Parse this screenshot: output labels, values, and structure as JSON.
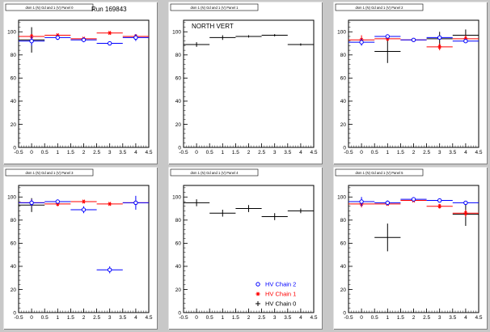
{
  "canvas": {
    "background": "#c8c8c8",
    "pad_color": "#ffffff"
  },
  "legend": {
    "entries": [
      {
        "label": "HV Chain 2",
        "color": "#0000ff",
        "marker": "circle"
      },
      {
        "label": "HV Chain 1",
        "color": "#ff0000",
        "marker": "star"
      },
      {
        "label": "HV Chain 0",
        "color": "#000000",
        "marker": "cross"
      }
    ]
  },
  "chart_data": [
    {
      "type": "scatter",
      "title": "dsm 1 (N) Gd and 1 (V) Panel 0",
      "annotation": "Run 169843",
      "xlim": [
        -0.5,
        4.5
      ],
      "ylim": [
        0,
        110
      ],
      "xticks": [
        "-0.5",
        "0",
        "0.5",
        "1",
        "1.5",
        "2",
        "2.5",
        "3",
        "3.5",
        "4",
        "4.5"
      ],
      "yticks": [
        "0",
        "20",
        "40",
        "60",
        "80",
        "100"
      ],
      "series": [
        {
          "marker": "circle",
          "color": "#0000ff",
          "x": [
            0,
            1,
            2,
            3,
            4
          ],
          "y": [
            92,
            95,
            93,
            90,
            95
          ],
          "yerr": [
            4,
            2,
            2,
            1,
            3
          ]
        },
        {
          "marker": "star",
          "color": "#ff0000",
          "x": [
            0,
            1,
            2,
            3,
            4
          ],
          "y": [
            96,
            97,
            94,
            99,
            96
          ],
          "yerr": [
            2,
            1,
            1,
            1,
            1
          ]
        },
        {
          "marker": "cross",
          "color": "#000000",
          "x": [
            0
          ],
          "y": [
            93
          ],
          "yerr": [
            11
          ]
        }
      ]
    },
    {
      "type": "scatter",
      "title": "dsm 1 (N) Gd and 1 (V) Panel 1",
      "annotation": "NORTH VERT",
      "xlim": [
        -0.5,
        4.5
      ],
      "ylim": [
        0,
        110
      ],
      "xticks": [
        "-0.5",
        "0",
        "0.5",
        "1",
        "1.5",
        "2",
        "2.5",
        "3",
        "3.5",
        "4",
        "4.5"
      ],
      "yticks": [
        "0",
        "20",
        "40",
        "60",
        "80",
        "100"
      ],
      "series": [
        {
          "marker": "cross",
          "color": "#000000",
          "x": [
            0,
            1,
            2,
            3,
            4
          ],
          "y": [
            89,
            95,
            96,
            97,
            89
          ],
          "yerr": [
            2,
            2,
            1,
            1,
            1
          ]
        }
      ]
    },
    {
      "type": "scatter",
      "title": "dsm 1 (N) Gd and 1 (V) Panel 2",
      "annotation": "",
      "xlim": [
        -0.5,
        4.5
      ],
      "ylim": [
        0,
        110
      ],
      "xticks": [
        "-0.5",
        "0",
        "0.5",
        "1",
        "1.5",
        "2",
        "2.5",
        "3",
        "3.5",
        "4",
        "4.5"
      ],
      "yticks": [
        "0",
        "20",
        "40",
        "60",
        "80",
        "100"
      ],
      "series": [
        {
          "marker": "circle",
          "color": "#0000ff",
          "x": [
            0,
            1,
            2,
            3,
            4
          ],
          "y": [
            91,
            96,
            93,
            95,
            92
          ],
          "yerr": [
            3,
            1,
            1,
            1,
            1
          ]
        },
        {
          "marker": "star",
          "color": "#ff0000",
          "x": [
            0,
            1,
            2,
            3,
            4
          ],
          "y": [
            93,
            94,
            93,
            87,
            94
          ],
          "yerr": [
            4,
            2,
            1,
            3,
            3
          ]
        },
        {
          "marker": "cross",
          "color": "#000000",
          "x": [
            1,
            3,
            4
          ],
          "y": [
            83,
            94,
            97
          ],
          "yerr": [
            10,
            6,
            5
          ]
        }
      ]
    },
    {
      "type": "scatter",
      "title": "dsm 1 (N) Gd and 1 (V) Panel 3",
      "annotation": "",
      "xlim": [
        -0.5,
        4.5
      ],
      "ylim": [
        0,
        110
      ],
      "xticks": [
        "-0.5",
        "0",
        "0.5",
        "1",
        "1.5",
        "2",
        "2.5",
        "3",
        "3.5",
        "4",
        "4.5"
      ],
      "yticks": [
        "0",
        "20",
        "40",
        "60",
        "80",
        "100"
      ],
      "series": [
        {
          "marker": "circle",
          "color": "#0000ff",
          "x": [
            0,
            1,
            2,
            3,
            4
          ],
          "y": [
            95,
            96,
            89,
            37,
            95
          ],
          "yerr": [
            3,
            1,
            3,
            3,
            6
          ]
        },
        {
          "marker": "star",
          "color": "#ff0000",
          "x": [
            0,
            1,
            2,
            3,
            4
          ],
          "y": [
            95,
            94,
            96,
            94,
            95
          ],
          "yerr": [
            3,
            2,
            1,
            1,
            1
          ]
        },
        {
          "marker": "cross",
          "color": "#000000",
          "x": [
            0
          ],
          "y": [
            93
          ],
          "yerr": [
            6
          ]
        }
      ]
    },
    {
      "type": "scatter",
      "title": "dsm 1 (N) Gd and 1 (V) Panel 4",
      "annotation": "",
      "xlim": [
        -0.5,
        4.5
      ],
      "ylim": [
        0,
        110
      ],
      "xticks": [
        "-0.5",
        "0",
        "0.5",
        "1",
        "1.5",
        "2",
        "2.5",
        "3",
        "3.5",
        "4",
        "4.5"
      ],
      "yticks": [
        "0",
        "20",
        "40",
        "60",
        "80",
        "100"
      ],
      "series": [
        {
          "marker": "cross",
          "color": "#000000",
          "x": [
            0,
            1,
            2,
            3,
            4
          ],
          "y": [
            95,
            86,
            90,
            83,
            88
          ],
          "yerr": [
            3,
            3,
            3,
            3,
            2
          ]
        }
      ]
    },
    {
      "type": "scatter",
      "title": "dsm 1 (N) Gd and 1 (V) Panel 5",
      "annotation": "",
      "xlim": [
        -0.5,
        4.5
      ],
      "ylim": [
        0,
        110
      ],
      "xticks": [
        "-0.5",
        "0",
        "0.5",
        "1",
        "1.5",
        "2",
        "2.5",
        "3",
        "3.5",
        "4",
        "4.5"
      ],
      "yticks": [
        "0",
        "20",
        "40",
        "60",
        "80",
        "100"
      ],
      "series": [
        {
          "marker": "circle",
          "color": "#0000ff",
          "x": [
            0,
            1,
            2,
            3,
            4
          ],
          "y": [
            96,
            95,
            98,
            97,
            95
          ],
          "yerr": [
            4,
            2,
            1,
            1,
            1
          ]
        },
        {
          "marker": "star",
          "color": "#ff0000",
          "x": [
            0,
            1,
            2,
            3,
            4
          ],
          "y": [
            94,
            94,
            97,
            92,
            86
          ],
          "yerr": [
            3,
            1,
            1,
            2,
            3
          ]
        },
        {
          "marker": "cross",
          "color": "#000000",
          "x": [
            1,
            4
          ],
          "y": [
            65,
            85
          ],
          "yerr": [
            12,
            10
          ]
        }
      ]
    }
  ]
}
